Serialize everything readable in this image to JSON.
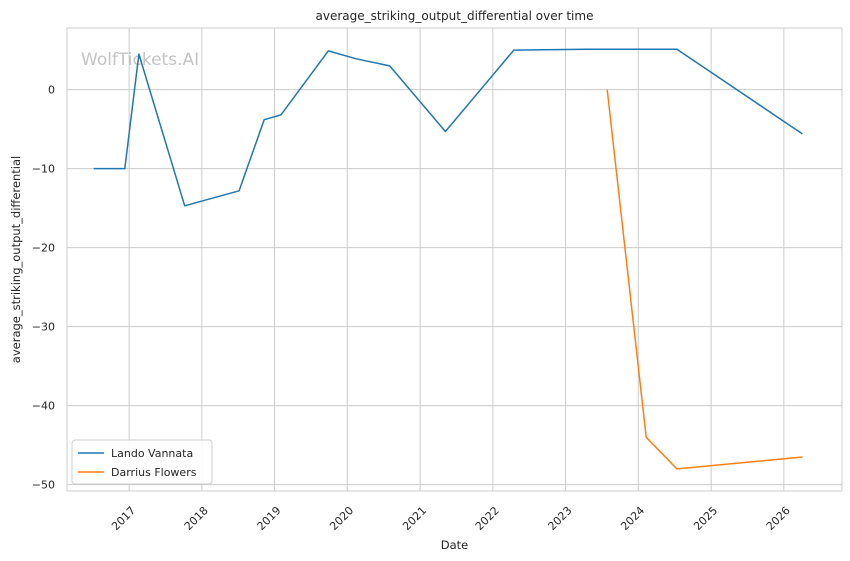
{
  "chart_data": {
    "type": "line",
    "title": "average_striking_output_differential over time",
    "xlabel": "Date",
    "ylabel": "average_striking_output_differential",
    "watermark": "WolfTickets.AI",
    "xlim": [
      "2016-02-24",
      "2026-10-20"
    ],
    "ylim": [
      -50.8,
      7.8
    ],
    "x_ticks": [
      "2017",
      "2018",
      "2019",
      "2020",
      "2021",
      "2022",
      "2023",
      "2024",
      "2025",
      "2026"
    ],
    "y_ticks": [
      0,
      -10,
      -20,
      -30,
      -40,
      -50
    ],
    "y_tick_labels": [
      "0",
      "−10",
      "−20",
      "−30",
      "−40",
      "−50"
    ],
    "grid": true,
    "legend_position": "lower-left",
    "series": [
      {
        "name": "Lando Vannata",
        "color": "#1f77b4",
        "points": [
          [
            "2016-07-07",
            -10.0
          ],
          [
            "2016-12-10",
            -10.0
          ],
          [
            "2017-02-19",
            4.5
          ],
          [
            "2017-10-07",
            -14.7
          ],
          [
            "2018-07-07",
            -12.8
          ],
          [
            "2018-11-10",
            -3.8
          ],
          [
            "2019-02-02",
            -3.2
          ],
          [
            "2019-09-28",
            4.9
          ],
          [
            "2020-02-15",
            3.9
          ],
          [
            "2020-08-01",
            3.0
          ],
          [
            "2021-05-08",
            -5.3
          ],
          [
            "2022-04-16",
            5.0
          ],
          [
            "2023-04-15",
            5.1
          ],
          [
            "2024-07-13",
            5.1
          ],
          [
            "2026-04-04",
            -5.6
          ]
        ]
      },
      {
        "name": "Darrius Flowers",
        "color": "#ff7f0e",
        "points": [
          [
            "2023-07-29",
            0.0
          ],
          [
            "2024-02-10",
            -44.0
          ],
          [
            "2024-07-13",
            -48.0
          ],
          [
            "2026-04-04",
            -46.5
          ]
        ]
      }
    ]
  }
}
